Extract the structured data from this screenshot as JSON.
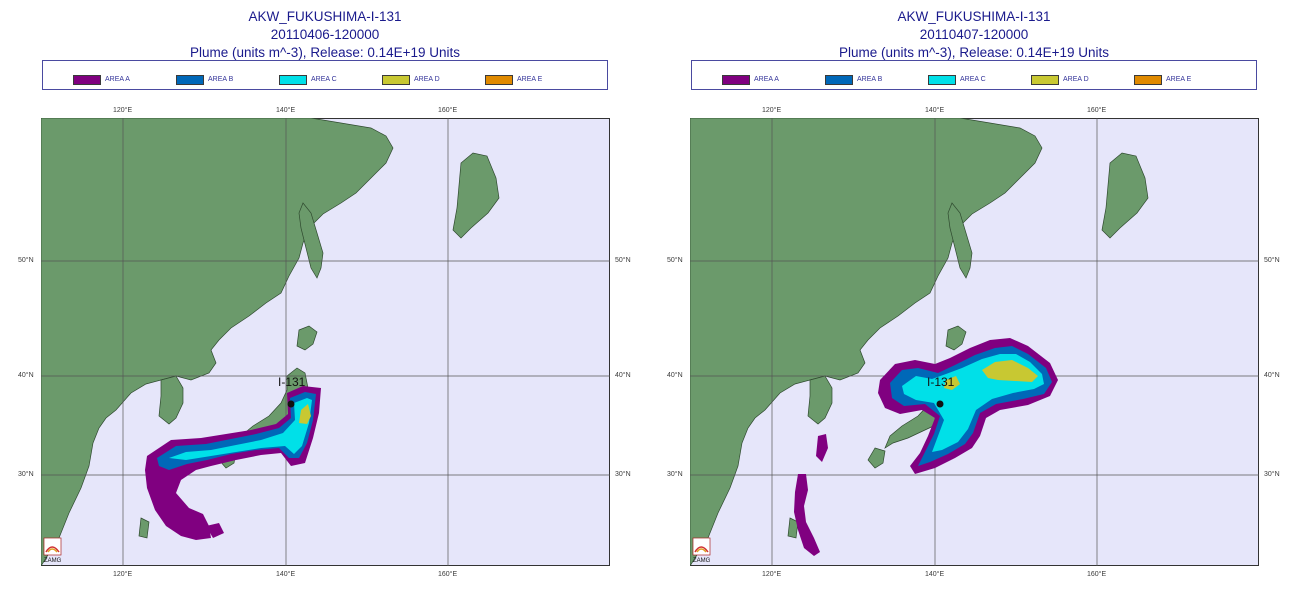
{
  "legend": {
    "items": [
      {
        "label": "AREA A",
        "color": "#800080"
      },
      {
        "label": "AREA B",
        "color": "#0068b8"
      },
      {
        "label": "AREA C",
        "color": "#00e0e8"
      },
      {
        "label": "AREA D",
        "color": "#c8c832"
      },
      {
        "label": "AREA E",
        "color": "#e08a00"
      }
    ]
  },
  "axes": {
    "top_lon": [
      "120°E",
      "140°E",
      "160°E"
    ],
    "bottom_lon": [
      "120°E",
      "140°E",
      "160°E"
    ],
    "left_lat": [
      "50°N",
      "40°N",
      "30°N"
    ],
    "right_lat": [
      "50°N",
      "40°N",
      "30°N"
    ]
  },
  "colors": {
    "ocean": "#e6e6fa",
    "land": "#6b9a6b",
    "grid": "#555555",
    "title": "#1a1a8c"
  },
  "panels": [
    {
      "title": "AKW_FUKUSHIMA-I-131",
      "datetime": "20110406-120000",
      "subtitle": "Plume (units m^-3), Release:  0.14E+19 Units",
      "source_label": "I-131",
      "logo_text": "ZAMG"
    },
    {
      "title": "AKW_FUKUSHIMA-I-131",
      "datetime": "20110407-120000",
      "subtitle": "Plume (units m^-3), Release:  0.14E+19 Units",
      "source_label": "I-131",
      "logo_text": "ZAMG"
    }
  ]
}
